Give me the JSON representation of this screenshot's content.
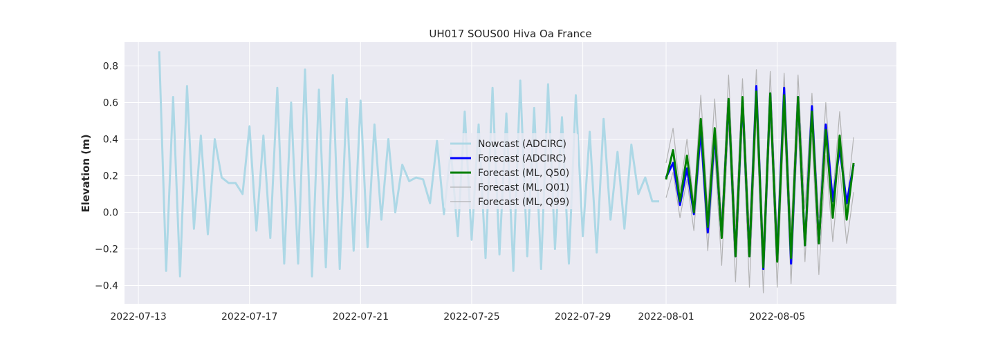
{
  "chart_data": {
    "type": "line",
    "title": "UH017 SOUS00 Hiva Oa France",
    "xlabel": "",
    "ylabel": "Elevation (m)",
    "x_range": [
      "2022-07-12T12:00",
      "2022-08-09T07:00"
    ],
    "ylim": [
      -0.5,
      0.93
    ],
    "x_ticks": [
      "2022-07-13",
      "2022-07-17",
      "2022-07-21",
      "2022-07-25",
      "2022-07-29",
      "2022-08-01",
      "2022-08-05"
    ],
    "y_ticks": [
      0.8,
      0.6,
      0.4,
      0.2,
      0.0,
      -0.2,
      -0.4
    ],
    "y_tick_labels": [
      "0.8",
      "0.6",
      "0.4",
      "0.2",
      "0.0",
      "−0.2",
      "−0.4"
    ],
    "grid": true,
    "legend_position": "center",
    "series": [
      {
        "name": "Nowcast (ADCIRC)",
        "color": "#add8e6",
        "x": [
          "2022-07-13T18:00",
          "2022-07-14T00:00",
          "2022-07-14T06:00",
          "2022-07-14T12:00",
          "2022-07-14T18:00",
          "2022-07-15T00:00",
          "2022-07-15T06:00",
          "2022-07-15T12:00",
          "2022-07-15T18:00",
          "2022-07-16T00:00",
          "2022-07-16T06:00",
          "2022-07-16T12:00",
          "2022-07-16T18:00",
          "2022-07-17T00:00",
          "2022-07-17T06:00",
          "2022-07-17T12:00",
          "2022-07-17T18:00",
          "2022-07-18T00:00",
          "2022-07-18T06:00",
          "2022-07-18T12:00",
          "2022-07-18T18:00",
          "2022-07-19T00:00",
          "2022-07-19T06:00",
          "2022-07-19T12:00",
          "2022-07-19T18:00",
          "2022-07-20T00:00",
          "2022-07-20T06:00",
          "2022-07-20T12:00",
          "2022-07-20T18:00",
          "2022-07-21T00:00",
          "2022-07-21T06:00",
          "2022-07-21T12:00",
          "2022-07-21T18:00",
          "2022-07-22T00:00",
          "2022-07-22T06:00",
          "2022-07-22T12:00",
          "2022-07-22T18:00",
          "2022-07-23T00:00",
          "2022-07-23T06:00",
          "2022-07-23T12:00",
          "2022-07-23T18:00",
          "2022-07-24T00:00",
          "2022-07-24T06:00",
          "2022-07-24T12:00",
          "2022-07-24T18:00",
          "2022-07-25T00:00",
          "2022-07-25T06:00",
          "2022-07-25T12:00",
          "2022-07-25T18:00",
          "2022-07-26T00:00",
          "2022-07-26T06:00",
          "2022-07-26T12:00",
          "2022-07-26T18:00",
          "2022-07-27T00:00",
          "2022-07-27T06:00",
          "2022-07-27T12:00",
          "2022-07-27T18:00",
          "2022-07-28T00:00",
          "2022-07-28T06:00",
          "2022-07-28T12:00",
          "2022-07-28T18:00",
          "2022-07-29T00:00",
          "2022-07-29T06:00",
          "2022-07-29T12:00",
          "2022-07-29T18:00",
          "2022-07-30T00:00",
          "2022-07-30T06:00",
          "2022-07-30T12:00",
          "2022-07-30T18:00",
          "2022-07-31T00:00",
          "2022-07-31T06:00",
          "2022-07-31T12:00",
          "2022-07-31T18:00"
        ],
        "values": [
          0.88,
          -0.32,
          0.63,
          -0.35,
          0.69,
          -0.09,
          0.42,
          -0.12,
          0.4,
          0.19,
          0.16,
          0.16,
          0.1,
          0.47,
          -0.1,
          0.42,
          -0.14,
          0.68,
          -0.28,
          0.6,
          -0.28,
          0.78,
          -0.35,
          0.67,
          -0.3,
          0.75,
          -0.31,
          0.62,
          -0.21,
          0.61,
          -0.19,
          0.48,
          -0.04,
          0.4,
          0.0,
          0.26,
          0.17,
          0.19,
          0.18,
          0.05,
          0.39,
          -0.01,
          0.34,
          -0.13,
          0.55,
          -0.15,
          0.48,
          -0.25,
          0.68,
          -0.23,
          0.54,
          -0.32,
          0.72,
          -0.24,
          0.57,
          -0.31,
          0.7,
          -0.2,
          0.52,
          -0.28,
          0.64,
          -0.13,
          0.44,
          -0.22,
          0.51,
          -0.04,
          0.33,
          -0.09,
          0.37,
          0.1,
          0.19,
          0.06,
          0.06
        ]
      },
      {
        "name": "Forecast (ADCIRC)",
        "color": "#0000ff",
        "x": [
          "2022-08-01T00:00",
          "2022-08-01T06:00",
          "2022-08-01T12:00",
          "2022-08-01T18:00",
          "2022-08-02T00:00",
          "2022-08-02T06:00",
          "2022-08-02T12:00",
          "2022-08-02T18:00",
          "2022-08-03T00:00",
          "2022-08-03T06:00",
          "2022-08-03T12:00",
          "2022-08-03T18:00",
          "2022-08-04T00:00",
          "2022-08-04T06:00",
          "2022-08-04T12:00",
          "2022-08-04T18:00",
          "2022-08-05T00:00",
          "2022-08-05T06:00",
          "2022-08-05T12:00",
          "2022-08-05T18:00",
          "2022-08-06T00:00",
          "2022-08-06T06:00",
          "2022-08-06T12:00",
          "2022-08-06T18:00",
          "2022-08-07T00:00",
          "2022-08-07T06:00",
          "2022-08-07T12:00",
          "2022-08-07T18:00",
          "2022-08-08T00:00",
          "2022-08-08T06:00",
          "2022-08-08T12:00",
          "2022-08-08T18:00"
        ],
        "values": [
          0.19,
          0.27,
          0.04,
          0.24,
          -0.01,
          0.45,
          -0.11,
          0.43,
          -0.13,
          0.61,
          -0.24,
          0.62,
          -0.24,
          0.69,
          -0.31,
          0.65,
          -0.26,
          0.68,
          -0.28,
          0.63,
          -0.18,
          0.58,
          -0.17,
          0.48,
          0.06,
          0.35,
          0.05,
          0.26,
          null,
          null,
          null,
          null
        ]
      },
      {
        "name": "Forecast (ML, Q50)",
        "color": "#008000",
        "x": [
          "2022-08-01T00:00",
          "2022-08-01T06:00",
          "2022-08-01T12:00",
          "2022-08-01T18:00",
          "2022-08-02T00:00",
          "2022-08-02T06:00",
          "2022-08-02T12:00",
          "2022-08-02T18:00",
          "2022-08-03T00:00",
          "2022-08-03T06:00",
          "2022-08-03T12:00",
          "2022-08-03T18:00",
          "2022-08-04T00:00",
          "2022-08-04T06:00",
          "2022-08-04T12:00",
          "2022-08-04T18:00",
          "2022-08-05T00:00",
          "2022-08-05T06:00",
          "2022-08-05T12:00",
          "2022-08-05T18:00",
          "2022-08-06T00:00",
          "2022-08-06T06:00",
          "2022-08-06T12:00",
          "2022-08-06T18:00",
          "2022-08-07T00:00",
          "2022-08-07T06:00",
          "2022-08-07T12:00",
          "2022-08-07T18:00",
          "2022-08-08T00:00",
          "2022-08-08T06:00",
          "2022-08-08T12:00",
          "2022-08-08T18:00"
        ],
        "values": [
          0.18,
          0.34,
          0.06,
          0.31,
          0.0,
          0.51,
          -0.08,
          0.46,
          -0.14,
          0.62,
          -0.24,
          0.63,
          -0.24,
          0.66,
          -0.3,
          0.65,
          -0.27,
          0.64,
          -0.25,
          0.63,
          -0.18,
          0.55,
          -0.17,
          0.45,
          -0.03,
          0.42,
          -0.04,
          0.27,
          null,
          null,
          null,
          null
        ]
      },
      {
        "name": "Forecast (ML, Q01)",
        "color": "#a9a9a9",
        "x": [
          "2022-08-01T00:00",
          "2022-08-01T06:00",
          "2022-08-01T12:00",
          "2022-08-01T18:00",
          "2022-08-02T00:00",
          "2022-08-02T06:00",
          "2022-08-02T12:00",
          "2022-08-02T18:00",
          "2022-08-03T00:00",
          "2022-08-03T06:00",
          "2022-08-03T12:00",
          "2022-08-03T18:00",
          "2022-08-04T00:00",
          "2022-08-04T06:00",
          "2022-08-04T12:00",
          "2022-08-04T18:00",
          "2022-08-05T00:00",
          "2022-08-05T06:00",
          "2022-08-05T12:00",
          "2022-08-05T18:00",
          "2022-08-06T00:00",
          "2022-08-06T06:00",
          "2022-08-06T12:00",
          "2022-08-06T18:00",
          "2022-08-07T00:00",
          "2022-08-07T06:00",
          "2022-08-07T12:00",
          "2022-08-07T18:00"
        ],
        "values": [
          0.08,
          0.22,
          -0.03,
          0.18,
          -0.1,
          0.39,
          -0.21,
          0.33,
          -0.29,
          0.49,
          -0.38,
          0.5,
          -0.41,
          0.52,
          -0.44,
          0.52,
          -0.41,
          0.5,
          -0.39,
          0.48,
          -0.27,
          0.42,
          -0.34,
          0.31,
          -0.16,
          0.25,
          -0.17,
          0.11
        ]
      },
      {
        "name": "Forecast (ML, Q99)",
        "color": "#a9a9a9",
        "x": [
          "2022-08-01T00:00",
          "2022-08-01T06:00",
          "2022-08-01T12:00",
          "2022-08-01T18:00",
          "2022-08-02T00:00",
          "2022-08-02T06:00",
          "2022-08-02T12:00",
          "2022-08-02T18:00",
          "2022-08-03T00:00",
          "2022-08-03T06:00",
          "2022-08-03T12:00",
          "2022-08-03T18:00",
          "2022-08-04T00:00",
          "2022-08-04T06:00",
          "2022-08-04T12:00",
          "2022-08-04T18:00",
          "2022-08-05T00:00",
          "2022-08-05T06:00",
          "2022-08-05T12:00",
          "2022-08-05T18:00",
          "2022-08-06T00:00",
          "2022-08-06T06:00",
          "2022-08-06T12:00",
          "2022-08-06T18:00",
          "2022-08-07T00:00",
          "2022-08-07T06:00",
          "2022-08-07T12:00",
          "2022-08-07T18:00"
        ],
        "values": [
          0.27,
          0.46,
          0.12,
          0.4,
          0.05,
          0.64,
          0.02,
          0.62,
          -0.04,
          0.75,
          -0.08,
          0.73,
          -0.09,
          0.78,
          -0.17,
          0.77,
          -0.12,
          0.76,
          -0.1,
          0.75,
          0.02,
          0.65,
          -0.03,
          0.6,
          0.08,
          0.55,
          0.04,
          0.41
        ]
      }
    ]
  }
}
